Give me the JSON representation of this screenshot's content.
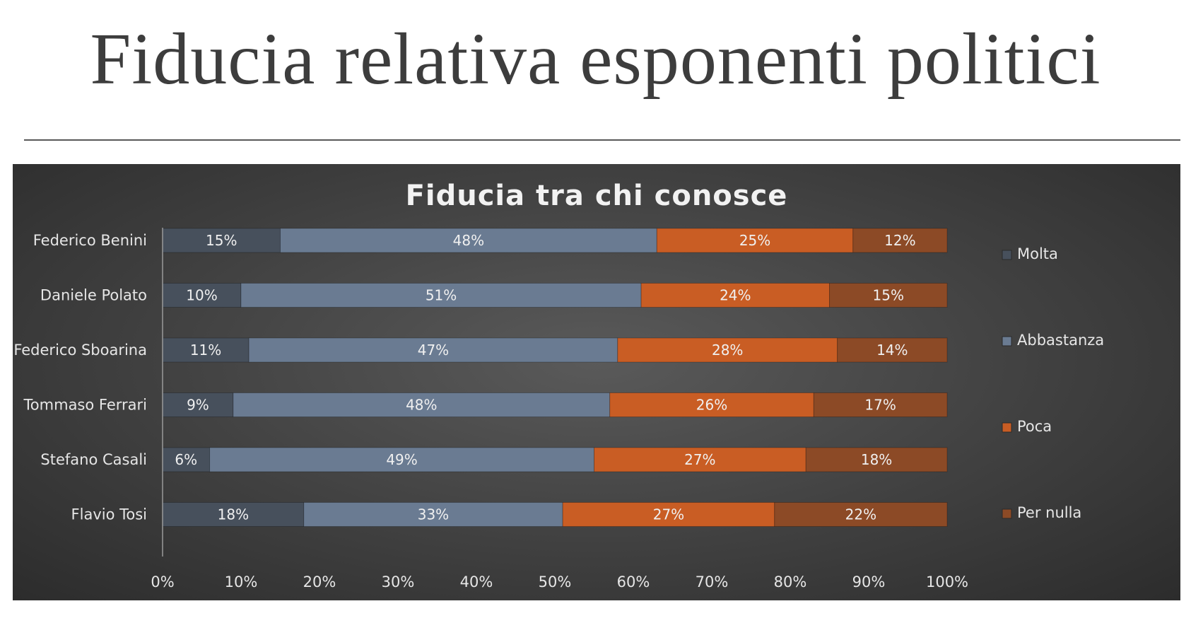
{
  "slide": {
    "title": "Fiducia relativa esponenti politici"
  },
  "chart_data": {
    "type": "bar",
    "orientation": "horizontal",
    "stacked": "percent",
    "title": "Fiducia tra chi conosce",
    "categories": [
      "Federico Benini",
      "Daniele Polato",
      "Federico Sboarina",
      "Tommaso Ferrari",
      "Stefano Casali",
      "Flavio Tosi"
    ],
    "series": [
      {
        "name": "Molta",
        "color": "#47505c",
        "values": [
          15,
          10,
          11,
          9,
          6,
          18
        ]
      },
      {
        "name": "Abbastanza",
        "color": "#6a7b92",
        "values": [
          48,
          51,
          47,
          48,
          49,
          33
        ]
      },
      {
        "name": "Poca",
        "color": "#c95d24",
        "values": [
          25,
          24,
          28,
          26,
          27,
          27
        ]
      },
      {
        "name": "Per nulla",
        "color": "#8c4a26",
        "values": [
          12,
          15,
          14,
          17,
          18,
          22
        ]
      }
    ],
    "xlim": [
      0,
      100
    ],
    "x_ticks": [
      "0%",
      "10%",
      "20%",
      "30%",
      "40%",
      "50%",
      "60%",
      "70%",
      "80%",
      "90%",
      "100%"
    ],
    "value_format": "percent",
    "legend_position": "right",
    "grid": false
  }
}
